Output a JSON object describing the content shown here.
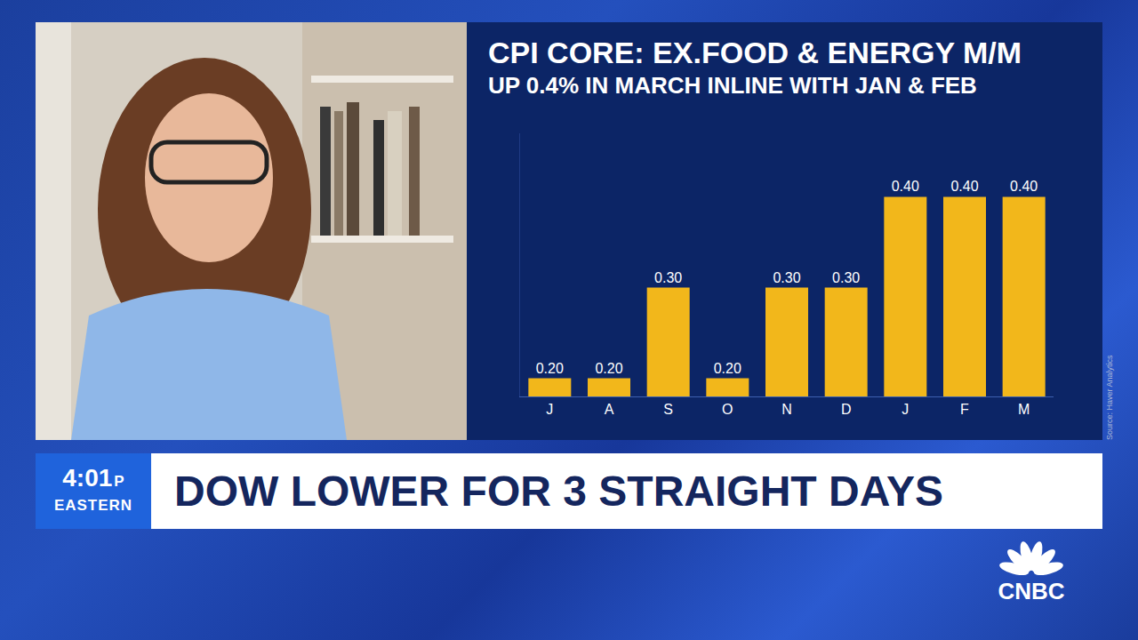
{
  "chart_data": {
    "type": "bar",
    "title": "CPI CORE: EX.FOOD & ENERGY M/M",
    "subtitle": "UP 0.4% IN MARCH INLINE WITH JAN & FEB",
    "categories": [
      "J",
      "A",
      "S",
      "O",
      "N",
      "D",
      "J",
      "F",
      "M"
    ],
    "values": [
      0.2,
      0.2,
      0.3,
      0.2,
      0.3,
      0.3,
      0.4,
      0.4,
      0.4
    ],
    "value_labels": [
      "0.20",
      "0.20",
      "0.30",
      "0.20",
      "0.30",
      "0.30",
      "0.40",
      "0.40",
      "0.40"
    ],
    "color": "#f2b71b",
    "ylim": [
      0.18,
      0.47
    ],
    "yticks": [],
    "grid": false,
    "data_labels": true,
    "tick_labels": "x",
    "annotations": [
      "Source: Haver Analytics"
    ]
  },
  "banner": {
    "time": "4:01",
    "time_suffix": "P",
    "zone": "EASTERN",
    "headline": "DOW LOWER FOR 3 STRAIGHT DAYS"
  },
  "logo": "CNBC"
}
